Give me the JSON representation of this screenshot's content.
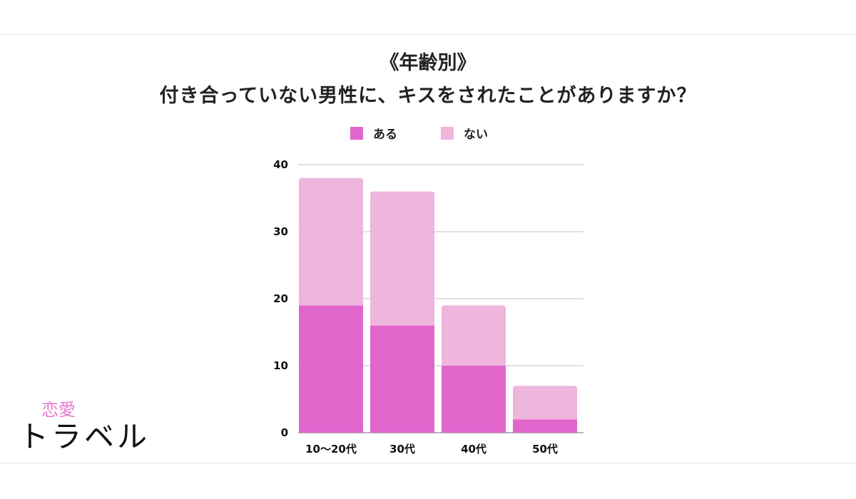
{
  "title": {
    "line1": "《年齢別》",
    "line2": "付き合っていない男性に、キスをされたことがありますか？"
  },
  "legend": [
    {
      "label": "ある",
      "color": "#e066cc"
    },
    {
      "label": "ない",
      "color": "#eeb6dc"
    }
  ],
  "chart_data": {
    "type": "bar",
    "stacked": true,
    "categories": [
      "10〜20代",
      "30代",
      "40代",
      "50代"
    ],
    "series": [
      {
        "name": "ある",
        "values": [
          19,
          16,
          10,
          2
        ],
        "color": "#e066cc"
      },
      {
        "name": "ない",
        "values": [
          19,
          20,
          9,
          5
        ],
        "color": "#eeb6dc"
      }
    ],
    "ylim": [
      0,
      40
    ],
    "yticks": [
      0,
      10,
      20,
      30,
      40
    ],
    "grid": true,
    "legend_position": "top"
  },
  "logo": {
    "top": "恋愛",
    "main": "トラベル"
  }
}
